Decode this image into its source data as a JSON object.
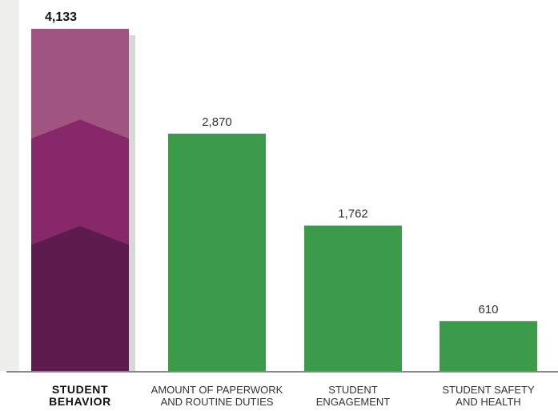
{
  "chart_data": {
    "type": "bar",
    "categories": [
      [
        "STUDENT",
        "BEHAVIOR"
      ],
      [
        "AMOUNT OF PAPERWORK",
        "AND ROUTINE DUTIES"
      ],
      [
        "STUDENT",
        "ENGAGEMENT"
      ],
      [
        "STUDENT SAFETY",
        "AND HEALTH"
      ]
    ],
    "values": [
      4133,
      2870,
      1762,
      610
    ],
    "value_labels": [
      "4,133",
      "2,870",
      "1,762",
      "610"
    ],
    "ylim": [
      0,
      4133
    ],
    "grid": false,
    "highlight_index": 0,
    "colors": {
      "bar": "#3c9b4b",
      "highlight_top": "#a0547f",
      "highlight_mid": "#87286a",
      "highlight_bottom": "#5e1b4d",
      "highlight_shadow": "#d6d8d6",
      "axis": "#888888",
      "label": "#333333",
      "highlight_label": "#111111"
    }
  }
}
